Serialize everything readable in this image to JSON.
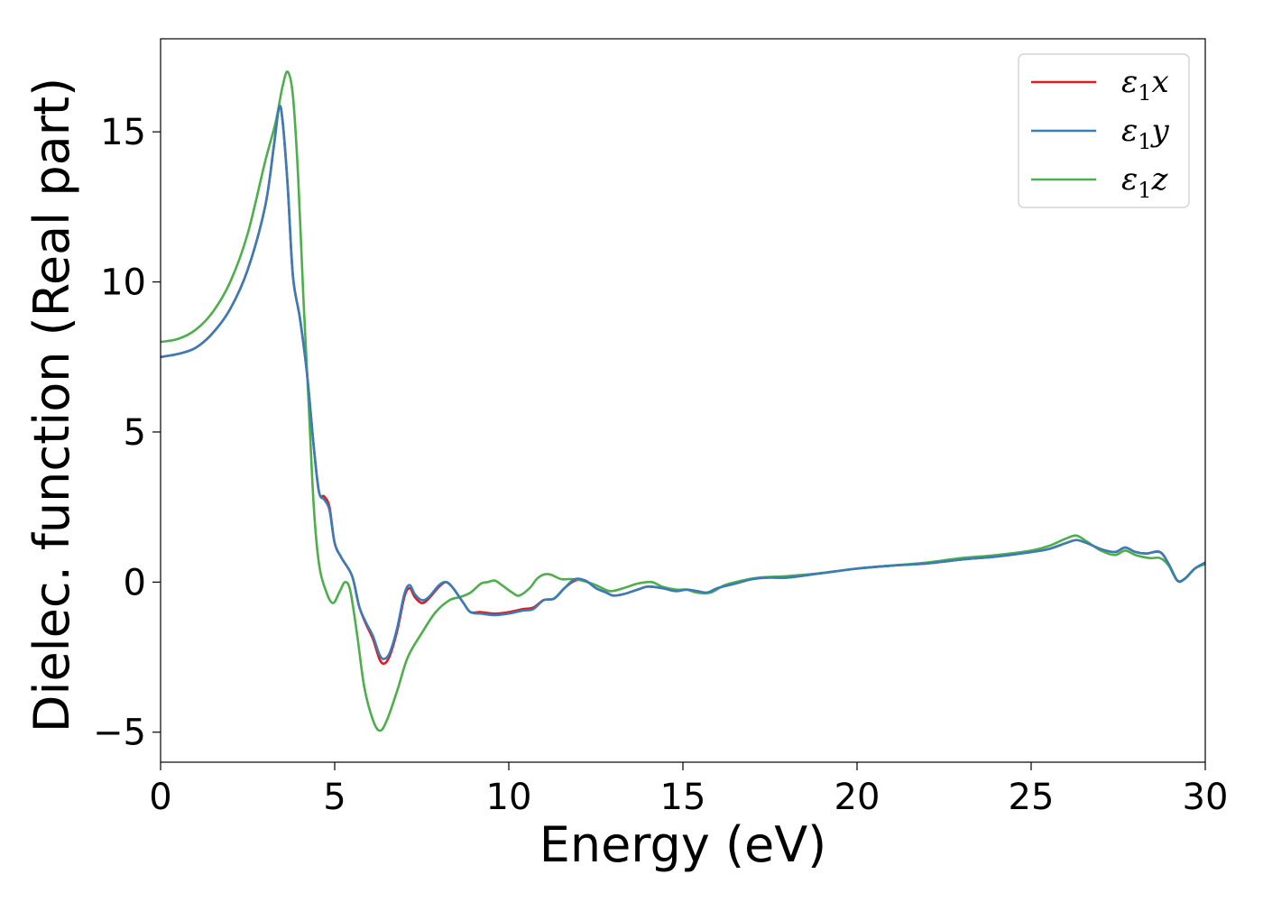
{
  "chart_data": {
    "type": "line",
    "xlabel": "Energy (eV)",
    "ylabel": "Dielec. function (Real part)",
    "xlim": [
      0,
      30
    ],
    "ylim": [
      -6,
      18.1
    ],
    "xticks": [
      0,
      5,
      10,
      15,
      20,
      25,
      30
    ],
    "xtick_labels": [
      "0",
      "5",
      "10",
      "15",
      "20",
      "25",
      "30"
    ],
    "yticks": [
      -5,
      0,
      5,
      10,
      15
    ],
    "ytick_labels": [
      "−5",
      "0",
      "5",
      "10",
      "15"
    ],
    "grid": false,
    "legend": "top-right",
    "series": [
      {
        "name": "ε₁x",
        "name_base": "ε",
        "name_sub": "1",
        "name_tail": "x",
        "color": "#e41a1c",
        "points": [
          [
            0,
            7.5
          ],
          [
            0.5,
            7.6
          ],
          [
            1,
            7.8
          ],
          [
            1.5,
            8.3
          ],
          [
            2,
            9.1
          ],
          [
            2.5,
            10.4
          ],
          [
            3,
            12.5
          ],
          [
            3.25,
            14.5
          ],
          [
            3.4,
            15.8
          ],
          [
            3.5,
            15.4
          ],
          [
            3.65,
            13.2
          ],
          [
            3.8,
            10.2
          ],
          [
            4.0,
            8.8
          ],
          [
            4.2,
            7.0
          ],
          [
            4.4,
            4.5
          ],
          [
            4.55,
            3.0
          ],
          [
            4.7,
            2.85
          ],
          [
            4.85,
            2.5
          ],
          [
            5.0,
            1.3
          ],
          [
            5.2,
            0.8
          ],
          [
            5.5,
            0.2
          ],
          [
            5.7,
            -0.8
          ],
          [
            5.9,
            -1.4
          ],
          [
            6.1,
            -1.9
          ],
          [
            6.3,
            -2.6
          ],
          [
            6.45,
            -2.7
          ],
          [
            6.6,
            -2.4
          ],
          [
            6.8,
            -1.6
          ],
          [
            7.0,
            -0.5
          ],
          [
            7.15,
            -0.2
          ],
          [
            7.3,
            -0.5
          ],
          [
            7.5,
            -0.7
          ],
          [
            7.7,
            -0.55
          ],
          [
            8.0,
            -0.15
          ],
          [
            8.2,
            0.0
          ],
          [
            8.4,
            -0.2
          ],
          [
            8.7,
            -0.7
          ],
          [
            8.9,
            -1.0
          ],
          [
            9.2,
            -1.0
          ],
          [
            9.6,
            -1.05
          ],
          [
            10.0,
            -1.0
          ],
          [
            10.4,
            -0.9
          ],
          [
            10.7,
            -0.85
          ],
          [
            11.0,
            -0.6
          ],
          [
            11.3,
            -0.55
          ],
          [
            11.6,
            -0.2
          ],
          [
            11.9,
            0.05
          ],
          [
            12.2,
            0.05
          ],
          [
            12.5,
            -0.2
          ],
          [
            12.8,
            -0.35
          ],
          [
            13.0,
            -0.45
          ],
          [
            13.3,
            -0.4
          ],
          [
            13.7,
            -0.25
          ],
          [
            14.0,
            -0.15
          ],
          [
            14.4,
            -0.2
          ],
          [
            14.8,
            -0.3
          ],
          [
            15.1,
            -0.25
          ],
          [
            15.4,
            -0.3
          ],
          [
            15.7,
            -0.35
          ],
          [
            16.0,
            -0.2
          ],
          [
            16.5,
            -0.05
          ],
          [
            17.0,
            0.1
          ],
          [
            17.5,
            0.15
          ],
          [
            18.0,
            0.15
          ],
          [
            19.0,
            0.3
          ],
          [
            20.0,
            0.45
          ],
          [
            21.0,
            0.55
          ],
          [
            22.0,
            0.62
          ],
          [
            23.0,
            0.75
          ],
          [
            24.0,
            0.85
          ],
          [
            25.0,
            1.0
          ],
          [
            25.5,
            1.1
          ],
          [
            26.0,
            1.3
          ],
          [
            26.3,
            1.4
          ],
          [
            26.6,
            1.3
          ],
          [
            27.0,
            1.1
          ],
          [
            27.4,
            1.0
          ],
          [
            27.7,
            1.15
          ],
          [
            28.0,
            1.0
          ],
          [
            28.3,
            0.95
          ],
          [
            28.7,
            1.0
          ],
          [
            28.95,
            0.6
          ],
          [
            29.2,
            0.05
          ],
          [
            29.4,
            0.1
          ],
          [
            29.7,
            0.45
          ],
          [
            30.0,
            0.65
          ]
        ]
      },
      {
        "name": "ε₁y",
        "name_base": "ε",
        "name_sub": "1",
        "name_tail": "y",
        "color": "#377eb8",
        "points": [
          [
            0,
            7.5
          ],
          [
            0.5,
            7.6
          ],
          [
            1,
            7.8
          ],
          [
            1.5,
            8.3
          ],
          [
            2,
            9.1
          ],
          [
            2.5,
            10.4
          ],
          [
            3,
            12.5
          ],
          [
            3.25,
            14.5
          ],
          [
            3.4,
            15.8
          ],
          [
            3.5,
            15.4
          ],
          [
            3.65,
            13.2
          ],
          [
            3.8,
            10.2
          ],
          [
            4.0,
            8.8
          ],
          [
            4.2,
            7.0
          ],
          [
            4.4,
            4.5
          ],
          [
            4.55,
            3.0
          ],
          [
            4.7,
            2.75
          ],
          [
            4.85,
            2.4
          ],
          [
            5.0,
            1.3
          ],
          [
            5.2,
            0.8
          ],
          [
            5.5,
            0.2
          ],
          [
            5.7,
            -0.8
          ],
          [
            5.9,
            -1.35
          ],
          [
            6.1,
            -1.8
          ],
          [
            6.3,
            -2.45
          ],
          [
            6.45,
            -2.55
          ],
          [
            6.6,
            -2.3
          ],
          [
            6.8,
            -1.5
          ],
          [
            7.0,
            -0.4
          ],
          [
            7.15,
            -0.1
          ],
          [
            7.3,
            -0.4
          ],
          [
            7.5,
            -0.6
          ],
          [
            7.7,
            -0.5
          ],
          [
            8.0,
            -0.1
          ],
          [
            8.2,
            0.0
          ],
          [
            8.4,
            -0.2
          ],
          [
            8.7,
            -0.7
          ],
          [
            8.9,
            -1.0
          ],
          [
            9.2,
            -1.05
          ],
          [
            9.6,
            -1.1
          ],
          [
            10.0,
            -1.05
          ],
          [
            10.4,
            -0.95
          ],
          [
            10.7,
            -0.9
          ],
          [
            11.0,
            -0.6
          ],
          [
            11.3,
            -0.55
          ],
          [
            11.6,
            -0.2
          ],
          [
            11.9,
            0.1
          ],
          [
            12.2,
            0.05
          ],
          [
            12.5,
            -0.2
          ],
          [
            12.8,
            -0.35
          ],
          [
            13.0,
            -0.45
          ],
          [
            13.3,
            -0.4
          ],
          [
            13.7,
            -0.25
          ],
          [
            14.0,
            -0.15
          ],
          [
            14.4,
            -0.2
          ],
          [
            14.8,
            -0.3
          ],
          [
            15.1,
            -0.25
          ],
          [
            15.4,
            -0.3
          ],
          [
            15.7,
            -0.35
          ],
          [
            16.0,
            -0.2
          ],
          [
            16.5,
            -0.05
          ],
          [
            17.0,
            0.1
          ],
          [
            17.5,
            0.15
          ],
          [
            18.0,
            0.15
          ],
          [
            19.0,
            0.3
          ],
          [
            20.0,
            0.45
          ],
          [
            21.0,
            0.55
          ],
          [
            22.0,
            0.62
          ],
          [
            23.0,
            0.75
          ],
          [
            24.0,
            0.85
          ],
          [
            25.0,
            1.0
          ],
          [
            25.5,
            1.1
          ],
          [
            26.0,
            1.3
          ],
          [
            26.3,
            1.4
          ],
          [
            26.6,
            1.3
          ],
          [
            27.0,
            1.1
          ],
          [
            27.4,
            1.0
          ],
          [
            27.7,
            1.15
          ],
          [
            28.0,
            1.0
          ],
          [
            28.3,
            0.95
          ],
          [
            28.7,
            1.0
          ],
          [
            28.95,
            0.6
          ],
          [
            29.2,
            0.05
          ],
          [
            29.4,
            0.1
          ],
          [
            29.7,
            0.45
          ],
          [
            30.0,
            0.65
          ]
        ]
      },
      {
        "name": "ε₁z",
        "name_base": "ε",
        "name_sub": "1",
        "name_tail": "z",
        "color": "#4daf4a",
        "points": [
          [
            0,
            8.0
          ],
          [
            0.5,
            8.1
          ],
          [
            1,
            8.4
          ],
          [
            1.5,
            9.0
          ],
          [
            2,
            10.0
          ],
          [
            2.5,
            11.6
          ],
          [
            3.0,
            14.0
          ],
          [
            3.3,
            15.3
          ],
          [
            3.5,
            16.5
          ],
          [
            3.65,
            17.0
          ],
          [
            3.8,
            16.2
          ],
          [
            3.95,
            13.5
          ],
          [
            4.1,
            9.5
          ],
          [
            4.25,
            6.0
          ],
          [
            4.4,
            2.5
          ],
          [
            4.55,
            0.6
          ],
          [
            4.75,
            -0.3
          ],
          [
            4.95,
            -0.7
          ],
          [
            5.15,
            -0.3
          ],
          [
            5.3,
            0.0
          ],
          [
            5.45,
            -0.3
          ],
          [
            5.65,
            -1.8
          ],
          [
            5.85,
            -3.5
          ],
          [
            6.1,
            -4.6
          ],
          [
            6.3,
            -4.95
          ],
          [
            6.5,
            -4.6
          ],
          [
            6.8,
            -3.6
          ],
          [
            7.1,
            -2.5
          ],
          [
            7.5,
            -1.7
          ],
          [
            7.9,
            -1.0
          ],
          [
            8.3,
            -0.6
          ],
          [
            8.6,
            -0.5
          ],
          [
            8.9,
            -0.35
          ],
          [
            9.2,
            -0.05
          ],
          [
            9.4,
            0.0
          ],
          [
            9.6,
            0.05
          ],
          [
            9.8,
            -0.1
          ],
          [
            10.1,
            -0.35
          ],
          [
            10.3,
            -0.45
          ],
          [
            10.6,
            -0.2
          ],
          [
            10.8,
            0.1
          ],
          [
            11.0,
            0.25
          ],
          [
            11.2,
            0.25
          ],
          [
            11.5,
            0.1
          ],
          [
            11.8,
            0.1
          ],
          [
            12.1,
            0.05
          ],
          [
            12.5,
            -0.1
          ],
          [
            12.9,
            -0.3
          ],
          [
            13.3,
            -0.2
          ],
          [
            13.7,
            -0.05
          ],
          [
            14.1,
            0.0
          ],
          [
            14.4,
            -0.15
          ],
          [
            14.8,
            -0.25
          ],
          [
            15.1,
            -0.25
          ],
          [
            15.4,
            -0.35
          ],
          [
            15.8,
            -0.35
          ],
          [
            16.2,
            -0.1
          ],
          [
            16.7,
            0.05
          ],
          [
            17.2,
            0.15
          ],
          [
            18.0,
            0.2
          ],
          [
            19.0,
            0.3
          ],
          [
            20.0,
            0.45
          ],
          [
            21.0,
            0.55
          ],
          [
            22.0,
            0.65
          ],
          [
            23.0,
            0.8
          ],
          [
            24.0,
            0.9
          ],
          [
            25.0,
            1.05
          ],
          [
            25.5,
            1.2
          ],
          [
            26.0,
            1.45
          ],
          [
            26.3,
            1.55
          ],
          [
            26.6,
            1.35
          ],
          [
            27.0,
            1.05
          ],
          [
            27.4,
            0.9
          ],
          [
            27.7,
            1.05
          ],
          [
            28.0,
            0.9
          ],
          [
            28.4,
            0.8
          ],
          [
            28.7,
            0.8
          ],
          [
            28.95,
            0.55
          ],
          [
            29.2,
            0.05
          ],
          [
            29.45,
            0.15
          ],
          [
            29.7,
            0.45
          ],
          [
            30.0,
            0.6
          ]
        ]
      }
    ]
  }
}
